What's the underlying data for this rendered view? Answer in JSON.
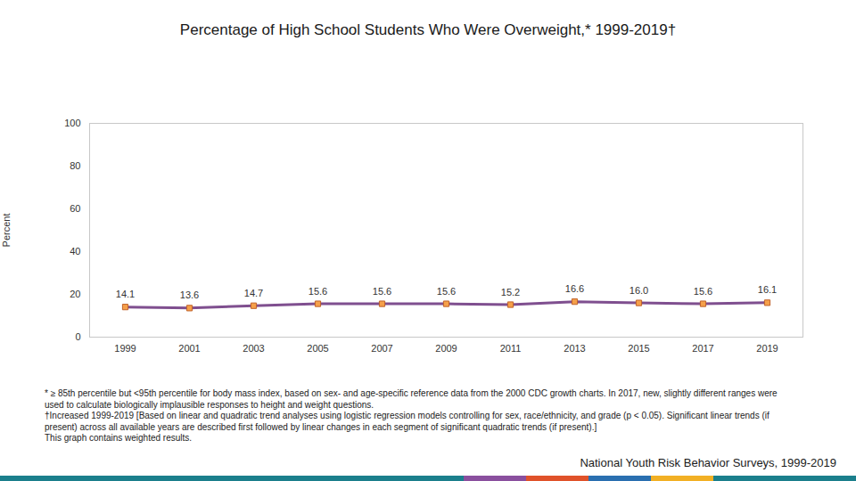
{
  "chart_data": {
    "type": "line",
    "title": "Percentage of High School Students Who Were Overweight,* 1999-2019†",
    "y_label": "Percent",
    "categories": [
      "1999",
      "2001",
      "2003",
      "2005",
      "2007",
      "2009",
      "2011",
      "2013",
      "2015",
      "2017",
      "2019"
    ],
    "values": [
      14.1,
      13.6,
      14.7,
      15.6,
      15.6,
      15.6,
      15.2,
      16.6,
      16.0,
      15.6,
      16.1
    ],
    "value_labels": [
      "14.1",
      "13.6",
      "14.7",
      "15.6",
      "15.6",
      "15.6",
      "15.2",
      "16.6",
      "16.0",
      "15.6",
      "16.1"
    ],
    "data_labels": true,
    "color": "#7f4f8f",
    "marker": "square",
    "ylim": [
      0,
      100
    ],
    "yticks": [
      0,
      20,
      40,
      60,
      80,
      100
    ],
    "grid": false,
    "notes": [
      "* ≥ 85th percentile but <95th percentile for body mass index, based on sex- and age-specific reference data from the 2000 CDC growth charts. In 2017, new, slightly different ranges were used to calculate biologically implausible responses to height and weight questions.",
      "†Increased 1999-2019 [Based on linear and quadratic trend analyses using logistic regression models controlling for sex, race/ethnicity, and grade (p < 0.05). Significant linear trends (if present) across all available years are described first followed by linear changes in each segment of significant quadratic trends (if present).]",
      "This graph contains weighted results."
    ],
    "source": "National Youth Risk Behavior Surveys, 1999-2019"
  }
}
